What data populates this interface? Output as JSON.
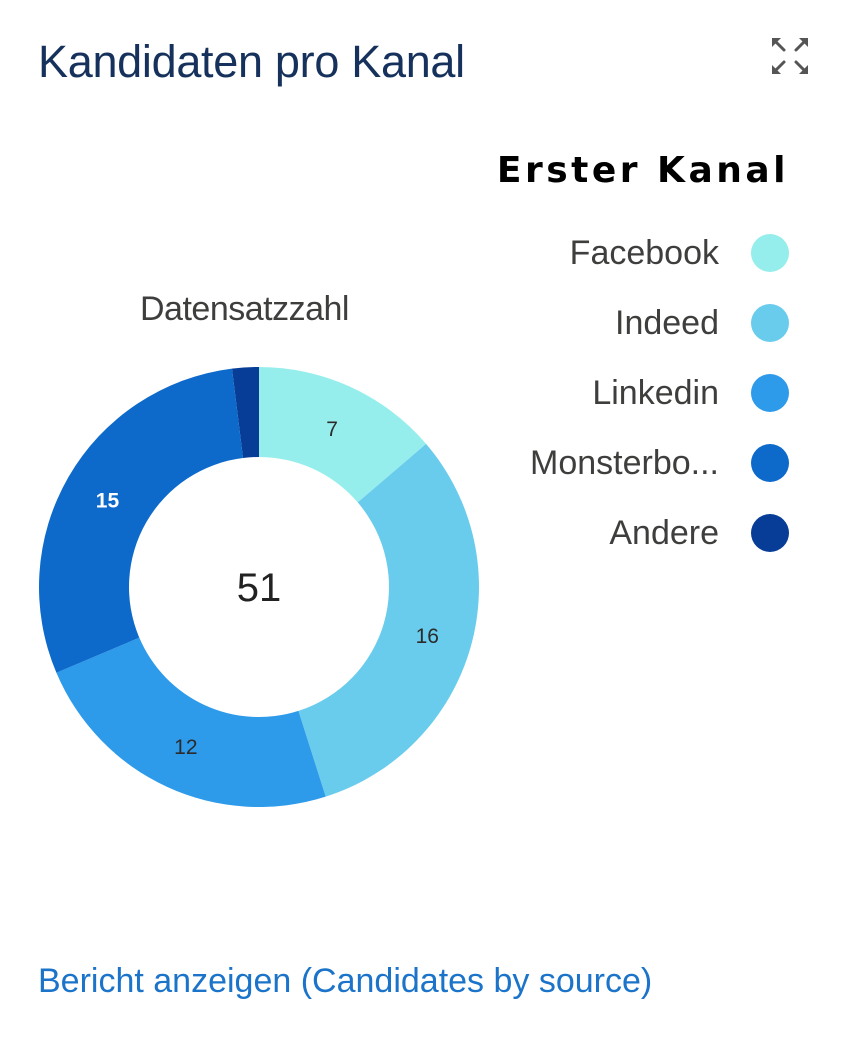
{
  "card": {
    "title": "Kandidaten pro Kanal",
    "expand_icon": "expand-arrows-icon",
    "metric_label": "Datensatzzahl",
    "report_link": "Bericht anzeigen (Candidates by source)"
  },
  "colors": {
    "title": "#16325c",
    "link": "#1b74c9"
  },
  "legend": {
    "title": "Erster Kanal",
    "items": [
      {
        "label": "Facebook",
        "color": "#95eeec"
      },
      {
        "label": "Indeed",
        "color": "#69ccec"
      },
      {
        "label": "Linkedin",
        "color": "#2d9aea"
      },
      {
        "label": "Monsterbo...",
        "color": "#0d6acb"
      },
      {
        "label": "Andere",
        "color": "#073d96"
      }
    ]
  },
  "chart_data": {
    "type": "pie",
    "variant": "donut",
    "title": "Kandidaten pro Kanal",
    "center_label": "51",
    "total": 51,
    "legend_title": "Erster Kanal",
    "legend_position": "right",
    "categories": [
      "Facebook",
      "Indeed",
      "Linkedin",
      "Monsterbo...",
      "Andere"
    ],
    "values": [
      7,
      16,
      12,
      15,
      1
    ],
    "data_labels": [
      "7",
      "16",
      "12",
      "15",
      ""
    ],
    "colors": [
      "#95eeec",
      "#69ccec",
      "#2d9aea",
      "#0d6acb",
      "#073d96"
    ],
    "label_colors": [
      "#2b2b2b",
      "#2b2b2b",
      "#2b2b2b",
      "#ffffff",
      "#ffffff"
    ]
  }
}
